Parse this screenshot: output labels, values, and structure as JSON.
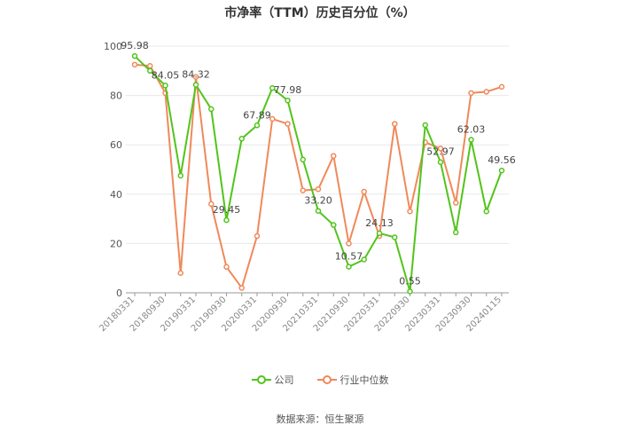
{
  "title": "市净率（TTM）历史百分位（%）",
  "source": "数据来源：恒生聚源",
  "legend": {
    "company": "公司",
    "industry": "行业中位数"
  },
  "colors": {
    "company": "#52c41a",
    "industry": "#f0895a",
    "grid": "#e8e8e8",
    "axis": "#999999",
    "label": "#555555"
  },
  "chart_data": {
    "type": "line",
    "title": "市净率（TTM）历史百分位（%）",
    "ylim": [
      0,
      100
    ],
    "y_ticks": [
      0,
      20,
      40,
      60,
      80,
      100
    ],
    "x_tick_labels": [
      "20180331",
      "20180930",
      "20190331",
      "20190930",
      "20200331",
      "20200930",
      "20210331",
      "20210930",
      "20220331",
      "20220930",
      "20230331",
      "20230930",
      "20240115"
    ],
    "grid": true,
    "legend_position": "bottom",
    "series": [
      {
        "name": "公司",
        "values": [
          95.98,
          90.0,
          84.05,
          47.5,
          84.32,
          74.5,
          29.45,
          62.5,
          67.89,
          83.0,
          77.98,
          54.0,
          33.2,
          27.5,
          10.57,
          13.5,
          24.13,
          22.5,
          0.55,
          68.0,
          52.97,
          24.5,
          62.03,
          33.0,
          49.56
        ],
        "labels": [
          "95.98",
          "",
          "84.05",
          "",
          "84.32",
          "",
          "29.45",
          "",
          "67.89",
          "",
          "77.98",
          "",
          "33.20",
          "",
          "10.57",
          "",
          "24.13",
          "",
          "0.55",
          "",
          "52.97",
          "",
          "62.03",
          "",
          "49.56"
        ]
      },
      {
        "name": "行业中位数",
        "values": [
          92.5,
          92.0,
          81.0,
          8.0,
          87.5,
          36.0,
          10.5,
          2.0,
          23.0,
          70.5,
          68.5,
          41.5,
          42.0,
          55.5,
          20.0,
          41.0,
          23.0,
          68.5,
          33.0,
          61.0,
          58.5,
          36.5,
          81.0,
          81.5,
          83.5
        ]
      }
    ]
  }
}
